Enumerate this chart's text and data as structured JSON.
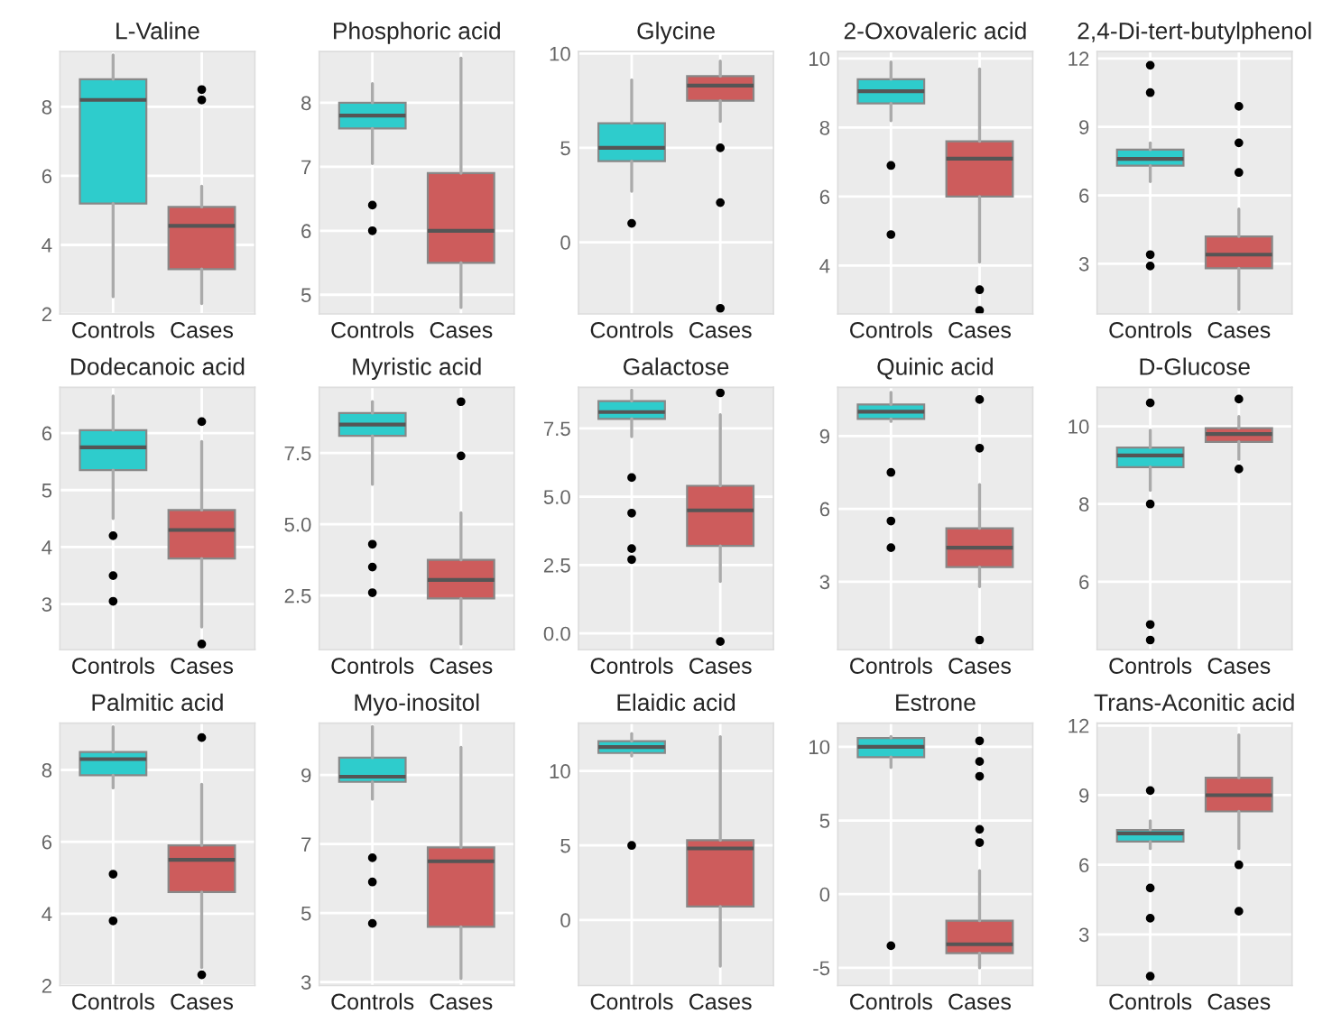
{
  "chart_data": [
    {
      "type": "box",
      "title": "L-Valine",
      "categories": [
        "Controls",
        "Cases"
      ],
      "colors": [
        "#2ecccc",
        "#cd5c5c"
      ],
      "ylim": [
        2,
        9.6
      ],
      "yticks": [
        2,
        4,
        6,
        8
      ],
      "grid": true,
      "boxes": [
        {
          "low": 2.5,
          "q1": 5.2,
          "median": 8.2,
          "q3": 8.8,
          "high": 9.5
        },
        {
          "low": 2.3,
          "q1": 3.3,
          "median": 4.55,
          "q3": 5.1,
          "high": 5.7,
          "outliers": [
            8.2,
            8.5
          ]
        }
      ]
    },
    {
      "type": "box",
      "title": "Phosphoric acid",
      "categories": [
        "Controls",
        "Cases"
      ],
      "colors": [
        "#2ecccc",
        "#cd5c5c"
      ],
      "ylim": [
        4.7,
        8.8
      ],
      "yticks": [
        5,
        6,
        7,
        8
      ],
      "grid": true,
      "boxes": [
        {
          "low": 7.05,
          "q1": 7.6,
          "median": 7.8,
          "q3": 8.0,
          "high": 8.3,
          "outliers": [
            6.4,
            6.0
          ]
        },
        {
          "low": 4.8,
          "q1": 5.5,
          "median": 6.0,
          "q3": 6.9,
          "high": 8.7
        }
      ]
    },
    {
      "type": "box",
      "title": "Glycine",
      "categories": [
        "Controls",
        "Cases"
      ],
      "colors": [
        "#2ecccc",
        "#cd5c5c"
      ],
      "ylim": [
        -3.8,
        10.1
      ],
      "yticks": [
        0,
        5,
        10
      ],
      "grid": true,
      "boxes": [
        {
          "low": 2.7,
          "q1": 4.3,
          "median": 5.0,
          "q3": 6.3,
          "high": 8.6,
          "outliers": [
            1.0
          ]
        },
        {
          "low": 6.4,
          "q1": 7.5,
          "median": 8.3,
          "q3": 8.8,
          "high": 9.6,
          "outliers": [
            5.0,
            2.1,
            -3.5
          ]
        }
      ]
    },
    {
      "type": "box",
      "title": "2-Oxovaleric acid",
      "categories": [
        "Controls",
        "Cases"
      ],
      "colors": [
        "#2ecccc",
        "#cd5c5c"
      ],
      "ylim": [
        2.6,
        10.2
      ],
      "yticks": [
        4,
        6,
        8,
        10
      ],
      "grid": true,
      "boxes": [
        {
          "low": 8.2,
          "q1": 8.7,
          "median": 9.05,
          "q3": 9.4,
          "high": 9.9,
          "outliers": [
            6.9,
            4.9
          ]
        },
        {
          "low": 4.1,
          "q1": 6.0,
          "median": 7.1,
          "q3": 7.6,
          "high": 9.7,
          "outliers": [
            3.3,
            2.7
          ]
        }
      ]
    },
    {
      "type": "box",
      "title": "2,4-Di-tert-butylphenol",
      "categories": [
        "Controls",
        "Cases"
      ],
      "colors": [
        "#2ecccc",
        "#cd5c5c"
      ],
      "ylim": [
        0.8,
        12.3
      ],
      "yticks": [
        3,
        6,
        9,
        12
      ],
      "grid": true,
      "boxes": [
        {
          "low": 6.6,
          "q1": 7.3,
          "median": 7.6,
          "q3": 8.0,
          "high": 8.3,
          "outliers": [
            3.4,
            2.9,
            10.5,
            11.7
          ]
        },
        {
          "low": 1.0,
          "q1": 2.8,
          "median": 3.4,
          "q3": 4.2,
          "high": 5.4,
          "outliers": [
            7.0,
            8.3,
            9.9
          ]
        }
      ]
    },
    {
      "type": "box",
      "title": "Dodecanoic acid",
      "categories": [
        "Controls",
        "Cases"
      ],
      "colors": [
        "#2ecccc",
        "#cd5c5c"
      ],
      "ylim": [
        2.2,
        6.8
      ],
      "yticks": [
        3,
        4,
        5,
        6
      ],
      "grid": true,
      "boxes": [
        {
          "low": 4.5,
          "q1": 5.35,
          "median": 5.75,
          "q3": 6.05,
          "high": 6.65,
          "outliers": [
            4.2,
            3.5,
            3.05
          ]
        },
        {
          "low": 2.6,
          "q1": 3.8,
          "median": 4.3,
          "q3": 4.65,
          "high": 5.85,
          "outliers": [
            6.2,
            2.3
          ]
        }
      ]
    },
    {
      "type": "box",
      "title": "Myristic acid",
      "categories": [
        "Controls",
        "Cases"
      ],
      "colors": [
        "#2ecccc",
        "#cd5c5c"
      ],
      "ylim": [
        0.6,
        9.8
      ],
      "yticks": [
        {
          "value": 2.5,
          "label": "2.5"
        },
        {
          "value": 5,
          "label": "5.0"
        },
        {
          "value": 7.5,
          "label": "7.5"
        }
      ],
      "grid": true,
      "boxes": [
        {
          "low": 6.4,
          "q1": 8.1,
          "median": 8.5,
          "q3": 8.9,
          "high": 9.3,
          "outliers": [
            4.3,
            3.5,
            2.6
          ]
        },
        {
          "low": 0.8,
          "q1": 2.4,
          "median": 3.05,
          "q3": 3.75,
          "high": 5.4,
          "outliers": [
            7.4,
            9.3
          ]
        }
      ]
    },
    {
      "type": "box",
      "title": "Galactose",
      "categories": [
        "Controls",
        "Cases"
      ],
      "colors": [
        "#2ecccc",
        "#cd5c5c"
      ],
      "ylim": [
        -0.6,
        9.0
      ],
      "yticks": [
        {
          "value": 0,
          "label": "0.0"
        },
        {
          "value": 2.5,
          "label": "2.5"
        },
        {
          "value": 5,
          "label": "5.0"
        },
        {
          "value": 7.5,
          "label": "7.5"
        }
      ],
      "grid": true,
      "boxes": [
        {
          "low": 7.2,
          "q1": 7.85,
          "median": 8.1,
          "q3": 8.5,
          "high": 8.9,
          "outliers": [
            5.7,
            4.4,
            3.1,
            2.7
          ]
        },
        {
          "low": 1.9,
          "q1": 3.2,
          "median": 4.5,
          "q3": 5.4,
          "high": 8.0,
          "outliers": [
            8.8,
            -0.3
          ]
        }
      ]
    },
    {
      "type": "box",
      "title": "Quinic acid",
      "categories": [
        "Controls",
        "Cases"
      ],
      "colors": [
        "#2ecccc",
        "#cd5c5c"
      ],
      "ylim": [
        0.2,
        11.0
      ],
      "yticks": [
        3,
        6,
        9
      ],
      "grid": true,
      "boxes": [
        {
          "low": 9.6,
          "q1": 9.7,
          "median": 10.0,
          "q3": 10.3,
          "high": 10.8,
          "outliers": [
            7.5,
            5.5,
            4.4
          ]
        },
        {
          "low": 2.8,
          "q1": 3.6,
          "median": 4.4,
          "q3": 5.2,
          "high": 7.0,
          "outliers": [
            10.5,
            8.5,
            0.6
          ]
        }
      ]
    },
    {
      "type": "box",
      "title": "D-Glucose",
      "categories": [
        "Controls",
        "Cases"
      ],
      "colors": [
        "#2ecccc",
        "#cd5c5c"
      ],
      "ylim": [
        4.25,
        11.0
      ],
      "yticks": [
        6,
        8,
        10
      ],
      "grid": true,
      "boxes": [
        {
          "low": 8.35,
          "q1": 8.95,
          "median": 9.25,
          "q3": 9.45,
          "high": 9.9,
          "outliers": [
            10.6,
            8.0,
            4.9,
            4.5
          ]
        },
        {
          "low": 9.15,
          "q1": 9.6,
          "median": 9.8,
          "q3": 9.95,
          "high": 10.25,
          "outliers": [
            10.7,
            8.9
          ]
        }
      ]
    },
    {
      "type": "box",
      "title": "Palmitic acid",
      "categories": [
        "Controls",
        "Cases"
      ],
      "colors": [
        "#2ecccc",
        "#cd5c5c"
      ],
      "ylim": [
        2,
        9.3
      ],
      "yticks": [
        2,
        4,
        6,
        8
      ],
      "grid": true,
      "boxes": [
        {
          "low": 7.5,
          "q1": 7.85,
          "median": 8.3,
          "q3": 8.5,
          "high": 9.2,
          "outliers": [
            5.1,
            3.8
          ]
        },
        {
          "low": 2.5,
          "q1": 4.6,
          "median": 5.5,
          "q3": 5.9,
          "high": 7.6,
          "outliers": [
            8.9,
            2.3
          ]
        }
      ]
    },
    {
      "type": "box",
      "title": "Myo-inositol",
      "categories": [
        "Controls",
        "Cases"
      ],
      "colors": [
        "#2ecccc",
        "#cd5c5c"
      ],
      "ylim": [
        2.9,
        10.5
      ],
      "yticks": [
        3,
        5,
        7,
        9
      ],
      "grid": true,
      "boxes": [
        {
          "low": 8.3,
          "q1": 8.8,
          "median": 8.95,
          "q3": 9.5,
          "high": 10.4,
          "outliers": [
            6.6,
            5.9,
            4.7
          ]
        },
        {
          "low": 3.1,
          "q1": 4.6,
          "median": 6.5,
          "q3": 6.9,
          "high": 9.8
        }
      ]
    },
    {
      "type": "box",
      "title": "Elaidic acid",
      "categories": [
        "Controls",
        "Cases"
      ],
      "colors": [
        "#2ecccc",
        "#cd5c5c"
      ],
      "ylim": [
        -4.4,
        13.2
      ],
      "yticks": [
        0,
        5,
        10
      ],
      "grid": true,
      "boxes": [
        {
          "low": 11.0,
          "q1": 11.2,
          "median": 11.6,
          "q3": 12.0,
          "high": 12.5,
          "outliers": [
            5.0
          ]
        },
        {
          "low": -3.1,
          "q1": 0.9,
          "median": 4.8,
          "q3": 5.35,
          "high": 12.3
        }
      ]
    },
    {
      "type": "box",
      "title": "Estrone",
      "categories": [
        "Controls",
        "Cases"
      ],
      "colors": [
        "#2ecccc",
        "#cd5c5c"
      ],
      "ylim": [
        -6.2,
        11.6
      ],
      "yticks": [
        -5,
        0,
        5,
        10
      ],
      "grid": true,
      "boxes": [
        {
          "low": 8.6,
          "q1": 9.3,
          "median": 10.0,
          "q3": 10.6,
          "high": 10.7,
          "outliers": [
            -3.5
          ]
        },
        {
          "low": -5.0,
          "q1": -4.0,
          "median": -3.4,
          "q3": -1.8,
          "high": 1.6,
          "outliers": [
            10.4,
            9.0,
            8.0,
            4.4,
            3.5
          ]
        }
      ]
    },
    {
      "type": "box",
      "title": "Trans-Aconitic acid",
      "categories": [
        "Controls",
        "Cases"
      ],
      "colors": [
        "#2ecccc",
        "#cd5c5c"
      ],
      "ylim": [
        0.8,
        12.1
      ],
      "yticks": [
        3,
        6,
        9,
        12
      ],
      "grid": true,
      "boxes": [
        {
          "low": 6.7,
          "q1": 7.0,
          "median": 7.35,
          "q3": 7.5,
          "high": 7.9,
          "outliers": [
            9.2,
            5.0,
            3.7,
            1.2
          ]
        },
        {
          "low": 6.7,
          "q1": 8.3,
          "median": 9.0,
          "q3": 9.75,
          "high": 11.6,
          "outliers": [
            6.0,
            4.0
          ]
        }
      ]
    }
  ]
}
